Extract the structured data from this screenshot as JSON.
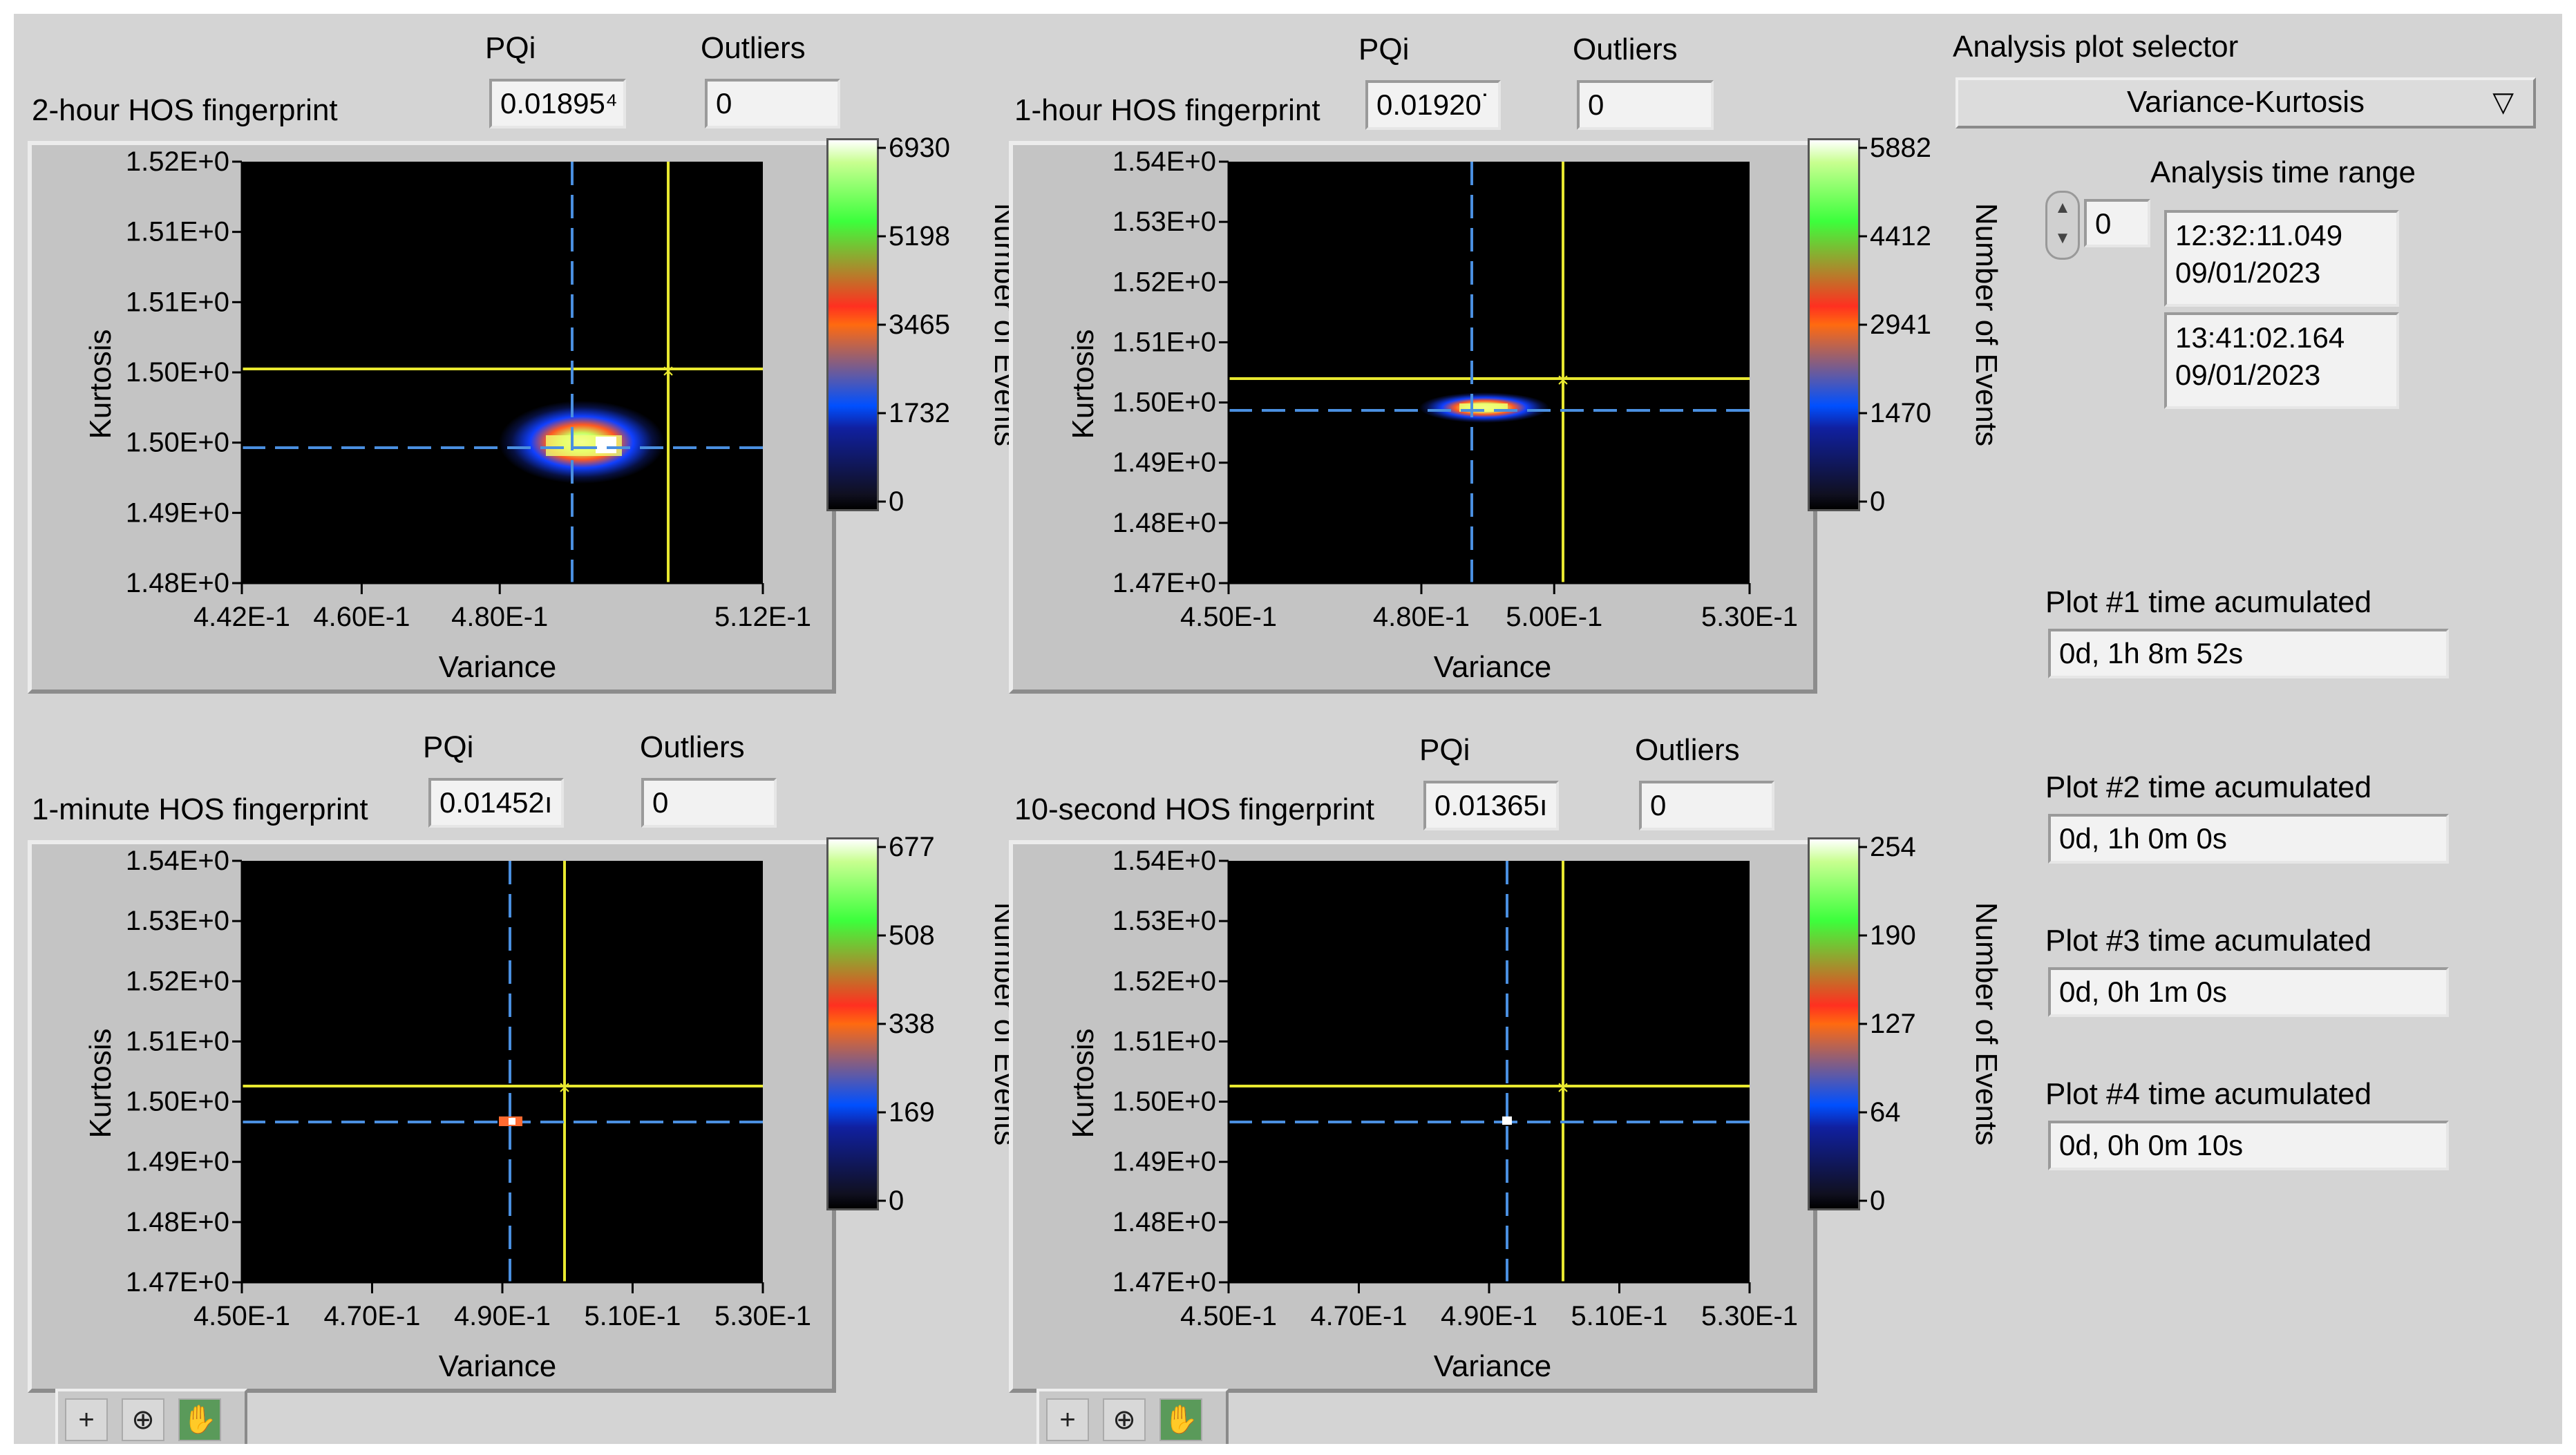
{
  "plots": [
    {
      "title": "2-hour HOS fingerprint",
      "pqi_label": "PQi",
      "pqi_value": "0.01895⁴",
      "outliers_label": "Outliers",
      "outliers_value": "0",
      "xlabel": "Variance",
      "ylabel": "Kurtosis",
      "xticks": [
        "4.42E-1",
        "4.60E-1",
        "4.80E-1",
        "5.12E-1"
      ],
      "yticks": [
        "1.52E+0",
        "1.51E+0",
        "1.51E+0",
        "1.50E+0",
        "1.50E+0",
        "1.49E+0",
        "1.48E+0"
      ],
      "colorbar_label": "Number of Events",
      "colorbar_ticks": [
        "6930",
        "5198",
        "3465",
        "1732",
        "0"
      ]
    },
    {
      "title": "1-hour HOS fingerprint",
      "pqi_label": "PQi",
      "pqi_value": "0.01920˙",
      "outliers_label": "Outliers",
      "outliers_value": "0",
      "xlabel": "Variance",
      "ylabel": "Kurtosis",
      "xticks": [
        "4.50E-1",
        "4.80E-1",
        "5.00E-1",
        "5.30E-1"
      ],
      "yticks": [
        "1.54E+0",
        "1.53E+0",
        "1.52E+0",
        "1.51E+0",
        "1.50E+0",
        "1.49E+0",
        "1.48E+0",
        "1.47E+0"
      ],
      "colorbar_label": "Number of Events",
      "colorbar_ticks": [
        "5882",
        "4412",
        "2941",
        "1470",
        "0"
      ]
    },
    {
      "title": "1-minute HOS fingerprint",
      "pqi_label": "PQi",
      "pqi_value": "0.01452ı",
      "outliers_label": "Outliers",
      "outliers_value": "0",
      "xlabel": "Variance",
      "ylabel": "Kurtosis",
      "xticks": [
        "4.50E-1",
        "4.70E-1",
        "4.90E-1",
        "5.10E-1",
        "5.30E-1"
      ],
      "yticks": [
        "1.54E+0",
        "1.53E+0",
        "1.52E+0",
        "1.51E+0",
        "1.50E+0",
        "1.49E+0",
        "1.48E+0",
        "1.47E+0"
      ],
      "colorbar_label": "Number of Events",
      "colorbar_ticks": [
        "677",
        "508",
        "338",
        "169",
        "0"
      ]
    },
    {
      "title": "10-second HOS fingerprint",
      "pqi_label": "PQi",
      "pqi_value": "0.01365ı",
      "outliers_label": "Outliers",
      "outliers_value": "0",
      "xlabel": "Variance",
      "ylabel": "Kurtosis",
      "xticks": [
        "4.50E-1",
        "4.70E-1",
        "4.90E-1",
        "5.10E-1",
        "5.30E-1"
      ],
      "yticks": [
        "1.54E+0",
        "1.53E+0",
        "1.52E+0",
        "1.51E+0",
        "1.50E+0",
        "1.49E+0",
        "1.48E+0",
        "1.47E+0"
      ],
      "colorbar_label": "Number of Events",
      "colorbar_ticks": [
        "254",
        "190",
        "127",
        "64",
        "0"
      ]
    }
  ],
  "selector": {
    "label": "Analysis plot selector",
    "value": "Variance-Kurtosis"
  },
  "time_range": {
    "label": "Analysis time range",
    "index": "0",
    "start_time": "12:32:11.049",
    "start_date": "09/01/2023",
    "end_time": "13:41:02.164",
    "end_date": "09/01/2023"
  },
  "accumulated": [
    {
      "label": "Plot #1 time acumulated",
      "value": "0d, 1h 8m 52s"
    },
    {
      "label": "Plot #2 time acumulated",
      "value": "0d, 1h 0m 0s"
    },
    {
      "label": "Plot #3 time acumulated",
      "value": "0d, 0h 1m 0s"
    },
    {
      "label": "Plot #4 time acumulated",
      "value": "0d, 0h 0m 10s"
    }
  ],
  "colors": {
    "panel": "#d4d4d4",
    "plot_bg": "#000000",
    "cursor_yellow": "#e8e830",
    "cursor_blue": "#4a8fe0"
  },
  "icons": [
    "crosshair-cursor-icon",
    "zoom-icon",
    "pan-hand-icon"
  ]
}
